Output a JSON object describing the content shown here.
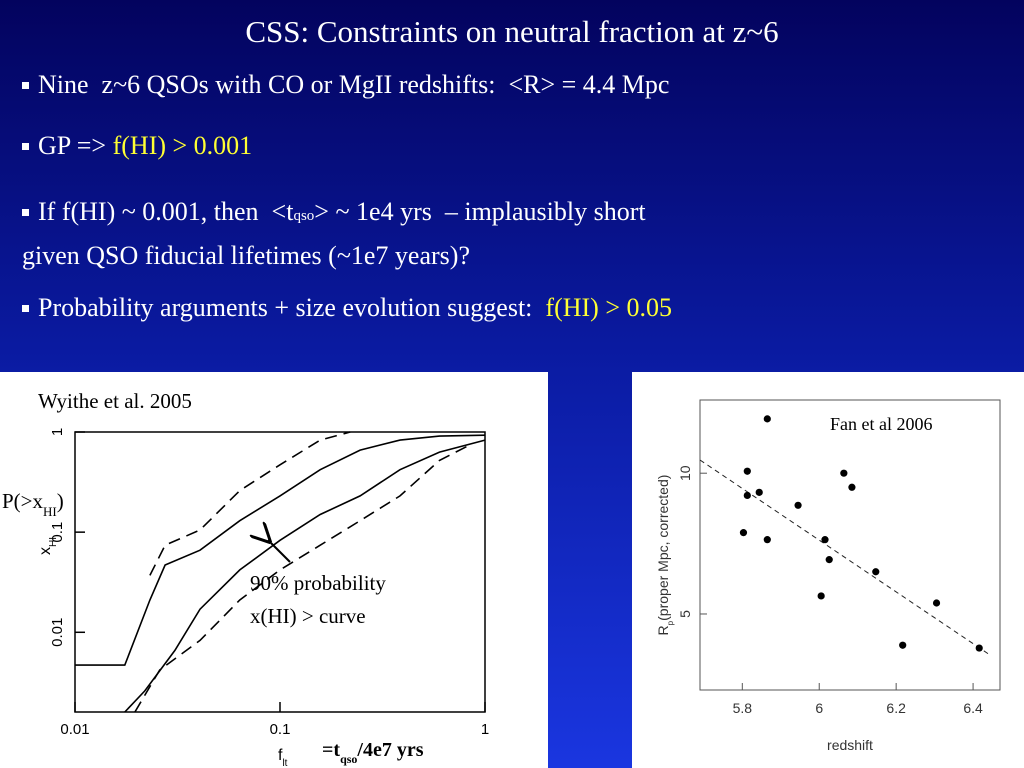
{
  "title": "CSS: Constraints on neutral fraction at z~6",
  "bullets": [
    {
      "text": "Nine  z~6 QSOs with CO or MgII redshifts:  <R> = 4.4 Mpc"
    },
    {
      "text": "GP => ",
      "highlight": "f(HI) > 0.001"
    },
    {
      "pre": "If f(HI) ~ 0.001, then  <t",
      "sub": "qso",
      "post": "> ~ 1e4 yrs  – implausibly short",
      "line2": "given QSO fiducial lifetimes (~1e7 years)?"
    },
    {
      "text": "Probability arguments + size evolution suggest:  ",
      "highlight": "f(HI) > 0.05"
    }
  ],
  "chart_data": [
    {
      "type": "line",
      "title": "Wyithe et al. 2005",
      "side_label": {
        "pre": "P(>x",
        "sub": "HI",
        "post": ")"
      },
      "xlabel": {
        "main": "f",
        "sub": "lt"
      },
      "xlabel_note": {
        "pre": "=t",
        "sub": "qso",
        "post": "/4e7 yrs"
      },
      "ylabel": {
        "main": "x",
        "sub": "HI"
      },
      "annotations": [
        "90% probability",
        "x(HI) > curve"
      ],
      "log_x": true,
      "log_y": true,
      "xlim": [
        0.01,
        1
      ],
      "ylim": [
        0.0016,
        1
      ],
      "xticks": [
        0.01,
        0.1,
        1
      ],
      "yticks": [
        0.01,
        0.1,
        1
      ],
      "series": [
        {
          "style": "dashed",
          "color": "#000000",
          "x": [
            0.0232,
            0.0275,
            0.0407,
            0.0637,
            0.1,
            0.157,
            0.22
          ],
          "values": [
            0.037,
            0.074,
            0.105,
            0.26,
            0.47,
            0.83,
            1
          ]
        },
        {
          "style": "solid",
          "color": "#000000",
          "x": [
            0.01,
            0.0175,
            0.0232,
            0.0275,
            0.0407,
            0.0637,
            0.1,
            0.157,
            0.246,
            0.385,
            0.6,
            1
          ],
          "values": [
            0.0047,
            0.0047,
            0.021,
            0.047,
            0.066,
            0.13,
            0.23,
            0.42,
            0.66,
            0.83,
            0.91,
            0.93
          ]
        },
        {
          "style": "solid",
          "color": "#000000",
          "x": [
            0.0175,
            0.0219,
            0.0307,
            0.0407,
            0.0637,
            0.1,
            0.157,
            0.246,
            0.385,
            0.6,
            1
          ],
          "values": [
            0.0016,
            0.0026,
            0.0066,
            0.017,
            0.042,
            0.083,
            0.15,
            0.23,
            0.42,
            0.63,
            0.83
          ]
        },
        {
          "style": "dashed",
          "color": "#000000",
          "x": [
            0.0196,
            0.0259,
            0.0407,
            0.0637,
            0.1,
            0.157,
            0.246,
            0.385,
            0.6,
            0.84
          ],
          "values": [
            0.0016,
            0.0042,
            0.0083,
            0.021,
            0.042,
            0.074,
            0.13,
            0.23,
            0.52,
            0.74
          ]
        }
      ]
    },
    {
      "type": "scatter",
      "annotation": "Fan et al 2006",
      "xlabel": "redshift",
      "ylabel": {
        "main": "R",
        "sub": "p",
        "post": "(proper Mpc, corrected)"
      },
      "xlim": [
        5.69,
        6.47
      ],
      "ylim": [
        2.3,
        12.6
      ],
      "xticks": [
        5.8,
        6,
        6.2,
        6.4
      ],
      "yticks": [
        5,
        10
      ],
      "color": "#000000",
      "x": [
        5.865,
        5.813,
        5.813,
        5.844,
        5.803,
        5.865,
        5.945,
        6.064,
        6.085,
        6.015,
        6.026,
        6.147,
        6.005,
        6.305,
        6.217,
        6.416
      ],
      "values": [
        11.93,
        10.07,
        9.21,
        9.32,
        7.89,
        7.64,
        8.86,
        10.0,
        9.5,
        7.64,
        6.93,
        6.5,
        5.64,
        5.39,
        3.89,
        3.79
      ]
    }
  ]
}
